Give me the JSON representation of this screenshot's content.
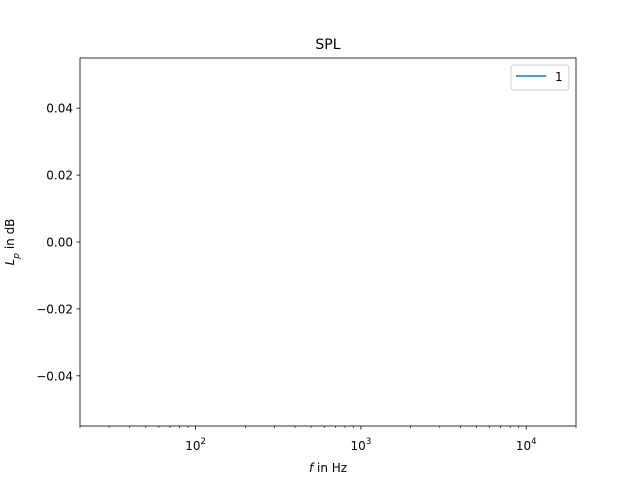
{
  "chart_data": {
    "type": "line",
    "title": "SPL",
    "xlabel": {
      "var": "f",
      "rest": " in Hz"
    },
    "ylabel": {
      "var": "L",
      "sub": "p",
      "rest": " in dB"
    },
    "x_scale": "log",
    "xlim": [
      20,
      20000
    ],
    "ylim": [
      -0.055,
      0.055
    ],
    "x_major_ticks": [
      {
        "value": 100,
        "base": "10",
        "exp": "2"
      },
      {
        "value": 1000,
        "base": "10",
        "exp": "3"
      },
      {
        "value": 10000,
        "base": "10",
        "exp": "4"
      }
    ],
    "y_ticks": [
      {
        "value": 0.04,
        "label": "0.04"
      },
      {
        "value": 0.02,
        "label": "0.02"
      },
      {
        "value": 0.0,
        "label": "0.00"
      },
      {
        "value": -0.02,
        "label": "−0.02"
      },
      {
        "value": -0.04,
        "label": "−0.04"
      }
    ],
    "grid": false,
    "legend": {
      "placement": "top-right"
    },
    "series": [
      {
        "name": "1",
        "color": "#1f77b4",
        "x": [],
        "y": []
      }
    ]
  }
}
